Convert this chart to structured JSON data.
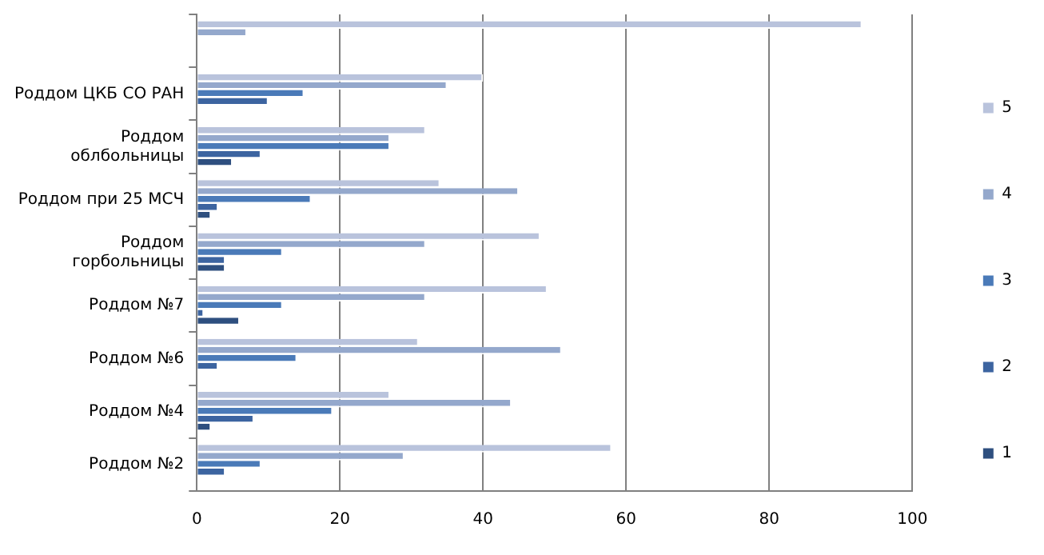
{
  "chart_data": {
    "type": "bar",
    "orientation": "horizontal",
    "categories": [
      null,
      "Роддом ЦКБ СО РАН",
      "Роддом облбольницы",
      "Роддом при 25 МСЧ",
      "Роддом горбольницы",
      "Роддом №7",
      "Роддом №6",
      "Роддом №4",
      "Роддом №2"
    ],
    "series": [
      {
        "name": "5",
        "color": "#b9c3dc",
        "values": [
          93,
          40,
          32,
          34,
          48,
          49,
          31,
          27,
          58
        ]
      },
      {
        "name": "4",
        "color": "#94a8cc",
        "values": [
          7,
          35,
          27,
          45,
          32,
          32,
          51,
          44,
          29
        ]
      },
      {
        "name": "3",
        "color": "#4a7ab8",
        "values": [
          0,
          15,
          27,
          16,
          12,
          12,
          14,
          19,
          9
        ]
      },
      {
        "name": "2",
        "color": "#3c64a0",
        "values": [
          0,
          10,
          9,
          3,
          4,
          1,
          3,
          8,
          4
        ]
      },
      {
        "name": "1",
        "color": "#2e4f7f",
        "values": [
          0,
          0,
          5,
          2,
          4,
          6,
          0,
          2,
          0
        ]
      }
    ],
    "xlim": [
      0,
      100
    ],
    "xticks": [
      0,
      20,
      40,
      60,
      80,
      100
    ],
    "grid": "x",
    "legend": "right"
  }
}
